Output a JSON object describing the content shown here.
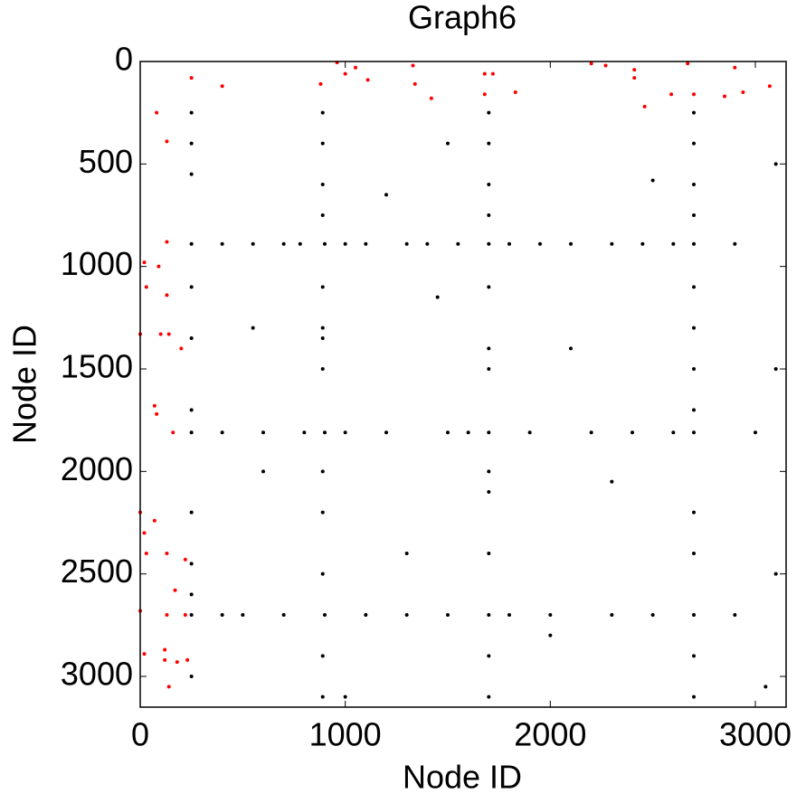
{
  "chart_data": {
    "type": "scatter",
    "title": "Graph6",
    "xlabel": "Node ID",
    "ylabel": "Node ID",
    "xlim": [
      0,
      3150
    ],
    "ylim": [
      0,
      3150
    ],
    "yreverse": true,
    "xticks": [
      0,
      1000,
      2000,
      3000
    ],
    "yticks": [
      0,
      500,
      1000,
      1500,
      2000,
      2500,
      3000
    ],
    "series": [
      {
        "color": "#000000",
        "x": [
          250,
          400,
          550,
          700,
          780,
          900,
          1000,
          1100,
          1300,
          1400,
          1550,
          1700,
          1800,
          1950,
          2100,
          2300,
          2450,
          2600,
          2700,
          2900,
          250,
          400,
          600,
          800,
          900,
          1000,
          1200,
          1500,
          1600,
          1700,
          1900,
          2200,
          2400,
          2600,
          2700,
          3000,
          250,
          400,
          500,
          700,
          900,
          1100,
          1300,
          1500,
          1700,
          1800,
          2000,
          2300,
          2500,
          2700,
          2900,
          890,
          890,
          890,
          890,
          890,
          890,
          890,
          890,
          890,
          890,
          890,
          890,
          890,
          1700,
          1700,
          1700,
          1700,
          1700,
          1700,
          1700,
          1700,
          1700,
          1700,
          1700,
          1700,
          2700,
          2700,
          2700,
          2700,
          2700,
          2700,
          2700,
          2700,
          2700,
          2700,
          2700,
          2700,
          250,
          250,
          250,
          250,
          250,
          250,
          250,
          250,
          250,
          250,
          1500,
          2100,
          1300,
          2300,
          600,
          1200,
          3100,
          3100,
          3100,
          2000,
          550,
          1450,
          2500,
          3050,
          1000
        ],
        "y": [
          890,
          890,
          890,
          890,
          890,
          890,
          890,
          890,
          890,
          890,
          890,
          890,
          890,
          890,
          890,
          890,
          890,
          890,
          890,
          890,
          1810,
          1810,
          1810,
          1810,
          1810,
          1810,
          1810,
          1810,
          1810,
          1810,
          1810,
          1810,
          1810,
          1810,
          1810,
          1810,
          2700,
          2700,
          2700,
          2700,
          2700,
          2700,
          2700,
          2700,
          2700,
          2700,
          2700,
          2700,
          2700,
          2700,
          2700,
          250,
          400,
          600,
          750,
          1100,
          1300,
          1350,
          1500,
          2000,
          2200,
          2500,
          2900,
          3100,
          250,
          400,
          600,
          750,
          1100,
          1400,
          1500,
          2000,
          2100,
          2400,
          2900,
          3100,
          250,
          400,
          600,
          750,
          1100,
          1300,
          1500,
          1700,
          2200,
          2400,
          2900,
          3100,
          250,
          400,
          550,
          1100,
          1350,
          1700,
          2200,
          2450,
          2600,
          3000,
          400,
          1400,
          2400,
          2050,
          2000,
          650,
          500,
          1500,
          2500,
          2800,
          1300,
          1150,
          580,
          3050,
          3100
        ]
      },
      {
        "color": "#ff0000",
        "x": [
          960,
          1000,
          1050,
          1110,
          880,
          400,
          250,
          1330,
          1340,
          1420,
          1680,
          1720,
          1680,
          1830,
          2200,
          2270,
          2410,
          2410,
          2460,
          2590,
          2670,
          2700,
          2850,
          2900,
          2940,
          3070,
          80,
          130,
          130,
          90,
          20,
          30,
          130,
          0,
          100,
          140,
          200,
          70,
          80,
          160,
          0,
          20,
          70,
          30,
          130,
          220,
          170,
          0,
          130,
          220,
          120,
          20,
          120,
          180,
          230,
          140
        ],
        "y": [
          5,
          60,
          30,
          90,
          110,
          120,
          80,
          20,
          110,
          180,
          60,
          60,
          160,
          150,
          10,
          20,
          40,
          80,
          220,
          160,
          10,
          160,
          170,
          30,
          150,
          120,
          250,
          390,
          880,
          1000,
          980,
          1100,
          1140,
          1330,
          1330,
          1330,
          1400,
          1680,
          1720,
          1810,
          2200,
          2300,
          2240,
          2400,
          2400,
          2430,
          2580,
          2680,
          2700,
          2700,
          2870,
          2890,
          2920,
          2930,
          2920,
          3050
        ]
      }
    ]
  }
}
